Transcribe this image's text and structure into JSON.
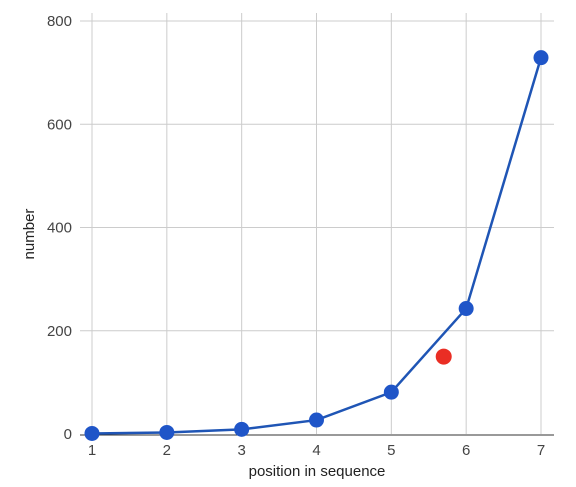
{
  "chart_data": {
    "type": "line",
    "xlabel": "position in sequence",
    "ylabel": "number",
    "xlim": [
      1,
      7
    ],
    "ylim": [
      0,
      800
    ],
    "x_ticks": [
      1,
      2,
      3,
      4,
      5,
      6,
      7
    ],
    "y_ticks": [
      0,
      200,
      400,
      600,
      800
    ],
    "grid": true,
    "series": [
      {
        "x": [
          1,
          2,
          3,
          4,
          5,
          6,
          7
        ],
        "values": [
          1,
          3,
          9,
          27,
          81,
          243,
          729
        ],
        "color": "#1f55c8"
      }
    ],
    "extra_points": [
      {
        "x": 5.7,
        "y": 150,
        "color": "#ea2e24"
      }
    ]
  }
}
